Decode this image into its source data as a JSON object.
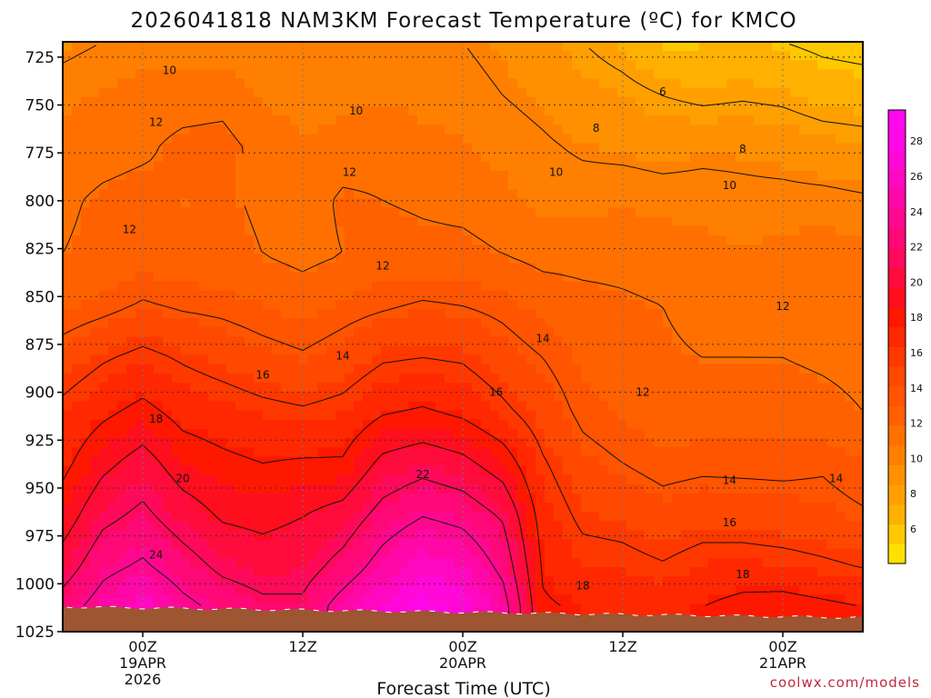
{
  "chart_data": {
    "type": "heatmap",
    "title": "2026041818 NAM3KM Forecast Temperature (ºC) for KMCO",
    "xlabel": "Forecast Time (UTC)",
    "credit": "coolwx.com/models",
    "y_ticks": [
      "725",
      "750",
      "775",
      "800",
      "825",
      "850",
      "875",
      "900",
      "925",
      "950",
      "975",
      "1000",
      "1025"
    ],
    "y_range_hpa": [
      717,
      1025
    ],
    "x_range_hours": [
      -6,
      54
    ],
    "x_ticks": [
      {
        "hour": 0,
        "lines": [
          "00Z",
          "19APR",
          "2026"
        ]
      },
      {
        "hour": 12,
        "lines": [
          "12Z"
        ]
      },
      {
        "hour": 24,
        "lines": [
          "00Z",
          "20APR"
        ]
      },
      {
        "hour": 36,
        "lines": [
          "12Z"
        ]
      },
      {
        "hour": 48,
        "lines": [
          "00Z",
          "21APR"
        ]
      }
    ],
    "colorbar": {
      "labels": [
        "6",
        "8",
        "10",
        "12",
        "14",
        "16",
        "18",
        "20",
        "22",
        "24",
        "26",
        "28"
      ],
      "levels": [
        4,
        5,
        6,
        7,
        8,
        9,
        10,
        11,
        12,
        13,
        14,
        15,
        16,
        17,
        18,
        19,
        20,
        21,
        22,
        23,
        24,
        25,
        26,
        27,
        28,
        29,
        30
      ],
      "colors": [
        "#FFE000",
        "#FFC800",
        "#FFB000",
        "#FFA000",
        "#FF9000",
        "#FF8000",
        "#FF7000",
        "#FF6000",
        "#FF5400",
        "#FF4800",
        "#FF3800",
        "#FF2800",
        "#FF1800",
        "#FF0E1E",
        "#FF0C3C",
        "#FF0A5A",
        "#FF0878",
        "#FF0890",
        "#FF08A8",
        "#FF08C0",
        "#FF08D8",
        "#FF08E8",
        "#FF08F0"
      ]
    },
    "profiles": [
      {
        "hour": -6,
        "temps": [
          9.6,
          10.6,
          11.4,
          11.8,
          12.0,
          13.0,
          14.8,
          16.5,
          17.5,
          19.0,
          21.0,
          23.0
        ]
      },
      {
        "hour": -3,
        "temps": [
          10.0,
          11.0,
          11.6,
          12.2,
          12.3,
          13.5,
          15.8,
          17.6,
          19.5,
          21.5,
          23.5,
          25.0
        ]
      },
      {
        "hour": 0,
        "temps": [
          10.2,
          11.4,
          11.8,
          12.4,
          12.6,
          14.2,
          16.5,
          18.5,
          20.8,
          22.5,
          24.4,
          26.6
        ]
      },
      {
        "hour": 3,
        "temps": [
          10.0,
          11.5,
          12.3,
          12.0,
          12.4,
          13.8,
          15.8,
          17.4,
          19.0,
          21.0,
          23.0,
          24.6
        ]
      },
      {
        "hour": 6,
        "temps": [
          10.2,
          11.6,
          12.4,
          12.2,
          12.4,
          13.6,
          15.2,
          17.0,
          18.4,
          19.8,
          21.6,
          23.4
        ]
      },
      {
        "hour": 9,
        "temps": [
          10.0,
          10.8,
          11.6,
          11.8,
          12.0,
          13.2,
          14.6,
          16.5,
          18.0,
          19.5,
          21.0,
          22.5
        ]
      },
      {
        "hour": 12,
        "temps": [
          10.2,
          10.4,
          11.0,
          11.4,
          11.6,
          12.8,
          14.2,
          16.2,
          18.2,
          20.0,
          21.2,
          22.4
        ]
      },
      {
        "hour": 15,
        "temps": [
          10.4,
          10.6,
          11.4,
          12.2,
          12.0,
          13.4,
          14.8,
          16.6,
          18.2,
          20.8,
          22.8,
          25.0
        ]
      },
      {
        "hour": 18,
        "temps": [
          10.4,
          10.8,
          11.6,
          12.0,
          12.6,
          13.8,
          15.8,
          17.8,
          20.5,
          22.8,
          25.0,
          27.2
        ]
      },
      {
        "hour": 21,
        "temps": [
          10.2,
          10.6,
          11.2,
          11.8,
          12.4,
          14.2,
          16.0,
          18.2,
          21.2,
          24.0,
          26.8,
          28.6
        ]
      },
      {
        "hour": 24,
        "temps": [
          10.0,
          10.4,
          11.0,
          11.6,
          12.4,
          14.0,
          15.8,
          17.6,
          20.5,
          23.4,
          26.0,
          27.8
        ]
      },
      {
        "hour": 27,
        "temps": [
          9.6,
          10.0,
          10.6,
          11.2,
          12.0,
          13.6,
          14.8,
          16.4,
          19.0,
          21.8,
          23.5,
          25.0
        ]
      },
      {
        "hour": 30,
        "temps": [
          9.0,
          9.6,
          10.2,
          10.6,
          11.6,
          12.8,
          14.0,
          15.0,
          16.2,
          17.2,
          17.8,
          18.2
        ]
      },
      {
        "hour": 33,
        "temps": [
          8.0,
          9.0,
          9.8,
          10.6,
          11.6,
          12.4,
          13.0,
          13.6,
          14.6,
          15.6,
          16.8,
          17.8
        ]
      },
      {
        "hour": 36,
        "temps": [
          7.2,
          8.6,
          9.6,
          10.8,
          11.6,
          12.2,
          12.6,
          13.0,
          14.0,
          15.4,
          16.6,
          17.6
        ]
      },
      {
        "hour": 39,
        "temps": [
          6.0,
          8.0,
          9.4,
          10.6,
          11.4,
          12.0,
          12.2,
          12.6,
          13.4,
          14.8,
          16.2,
          17.4
        ]
      },
      {
        "hour": 42,
        "temps": [
          6.2,
          7.6,
          9.6,
          10.6,
          11.2,
          11.6,
          12.0,
          12.8,
          13.6,
          15.2,
          16.8,
          18.0
        ]
      },
      {
        "hour": 45,
        "temps": [
          6.6,
          7.8,
          9.6,
          10.4,
          11.0,
          11.6,
          12.0,
          12.8,
          13.6,
          15.0,
          17.0,
          18.6
        ]
      },
      {
        "hour": 48,
        "temps": [
          6.0,
          7.6,
          9.4,
          10.4,
          11.2,
          11.6,
          12.0,
          12.6,
          13.6,
          14.8,
          16.8,
          18.8
        ]
      },
      {
        "hour": 51,
        "temps": [
          5.6,
          7.0,
          9.0,
          10.4,
          11.4,
          11.6,
          11.8,
          12.4,
          13.8,
          14.6,
          16.4,
          18.4
        ]
      },
      {
        "hour": 54,
        "temps": [
          5.4,
          6.8,
          8.8,
          10.2,
          11.2,
          11.6,
          11.6,
          12.0,
          13.2,
          14.2,
          16.0,
          18.0
        ]
      }
    ],
    "profile_levels_hpa": [
      717,
      745,
      772,
      800,
      828,
      855,
      882,
      910,
      937,
      965,
      992,
      1012
    ],
    "ground_level_hpa": 1012,
    "contour_levels": [
      6,
      8,
      10,
      12,
      14,
      16,
      18,
      20,
      22,
      24
    ],
    "contour_labels": [
      {
        "text": "10",
        "hour": 2,
        "hpa": 732
      },
      {
        "text": "6",
        "hour": 39,
        "hpa": 743
      },
      {
        "text": "10",
        "hour": 16,
        "hpa": 753
      },
      {
        "text": "12",
        "hour": 1,
        "hpa": 759
      },
      {
        "text": "8",
        "hour": 34,
        "hpa": 762
      },
      {
        "text": "8",
        "hour": 45,
        "hpa": 773
      },
      {
        "text": "12",
        "hour": 15.5,
        "hpa": 785
      },
      {
        "text": "10",
        "hour": 31,
        "hpa": 785
      },
      {
        "text": "10",
        "hour": 44,
        "hpa": 792
      },
      {
        "text": "12",
        "hour": -1,
        "hpa": 815
      },
      {
        "text": "12",
        "hour": 18,
        "hpa": 834
      },
      {
        "text": "12",
        "hour": 48,
        "hpa": 855
      },
      {
        "text": "14",
        "hour": 15,
        "hpa": 881
      },
      {
        "text": "14",
        "hour": 30,
        "hpa": 872
      },
      {
        "text": "16",
        "hour": 9,
        "hpa": 891
      },
      {
        "text": "16",
        "hour": 26.5,
        "hpa": 900
      },
      {
        "text": "12",
        "hour": 37.5,
        "hpa": 900
      },
      {
        "text": "18",
        "hour": 1,
        "hpa": 914
      },
      {
        "text": "22",
        "hour": 21,
        "hpa": 943
      },
      {
        "text": "20",
        "hour": 3,
        "hpa": 945
      },
      {
        "text": "14",
        "hour": 44,
        "hpa": 946
      },
      {
        "text": "14",
        "hour": 52,
        "hpa": 945
      },
      {
        "text": "16",
        "hour": 44,
        "hpa": 968
      },
      {
        "text": "24",
        "hour": 1,
        "hpa": 985
      },
      {
        "text": "18",
        "hour": 45,
        "hpa": 995
      },
      {
        "text": "18",
        "hour": 33,
        "hpa": 1001
      }
    ]
  }
}
